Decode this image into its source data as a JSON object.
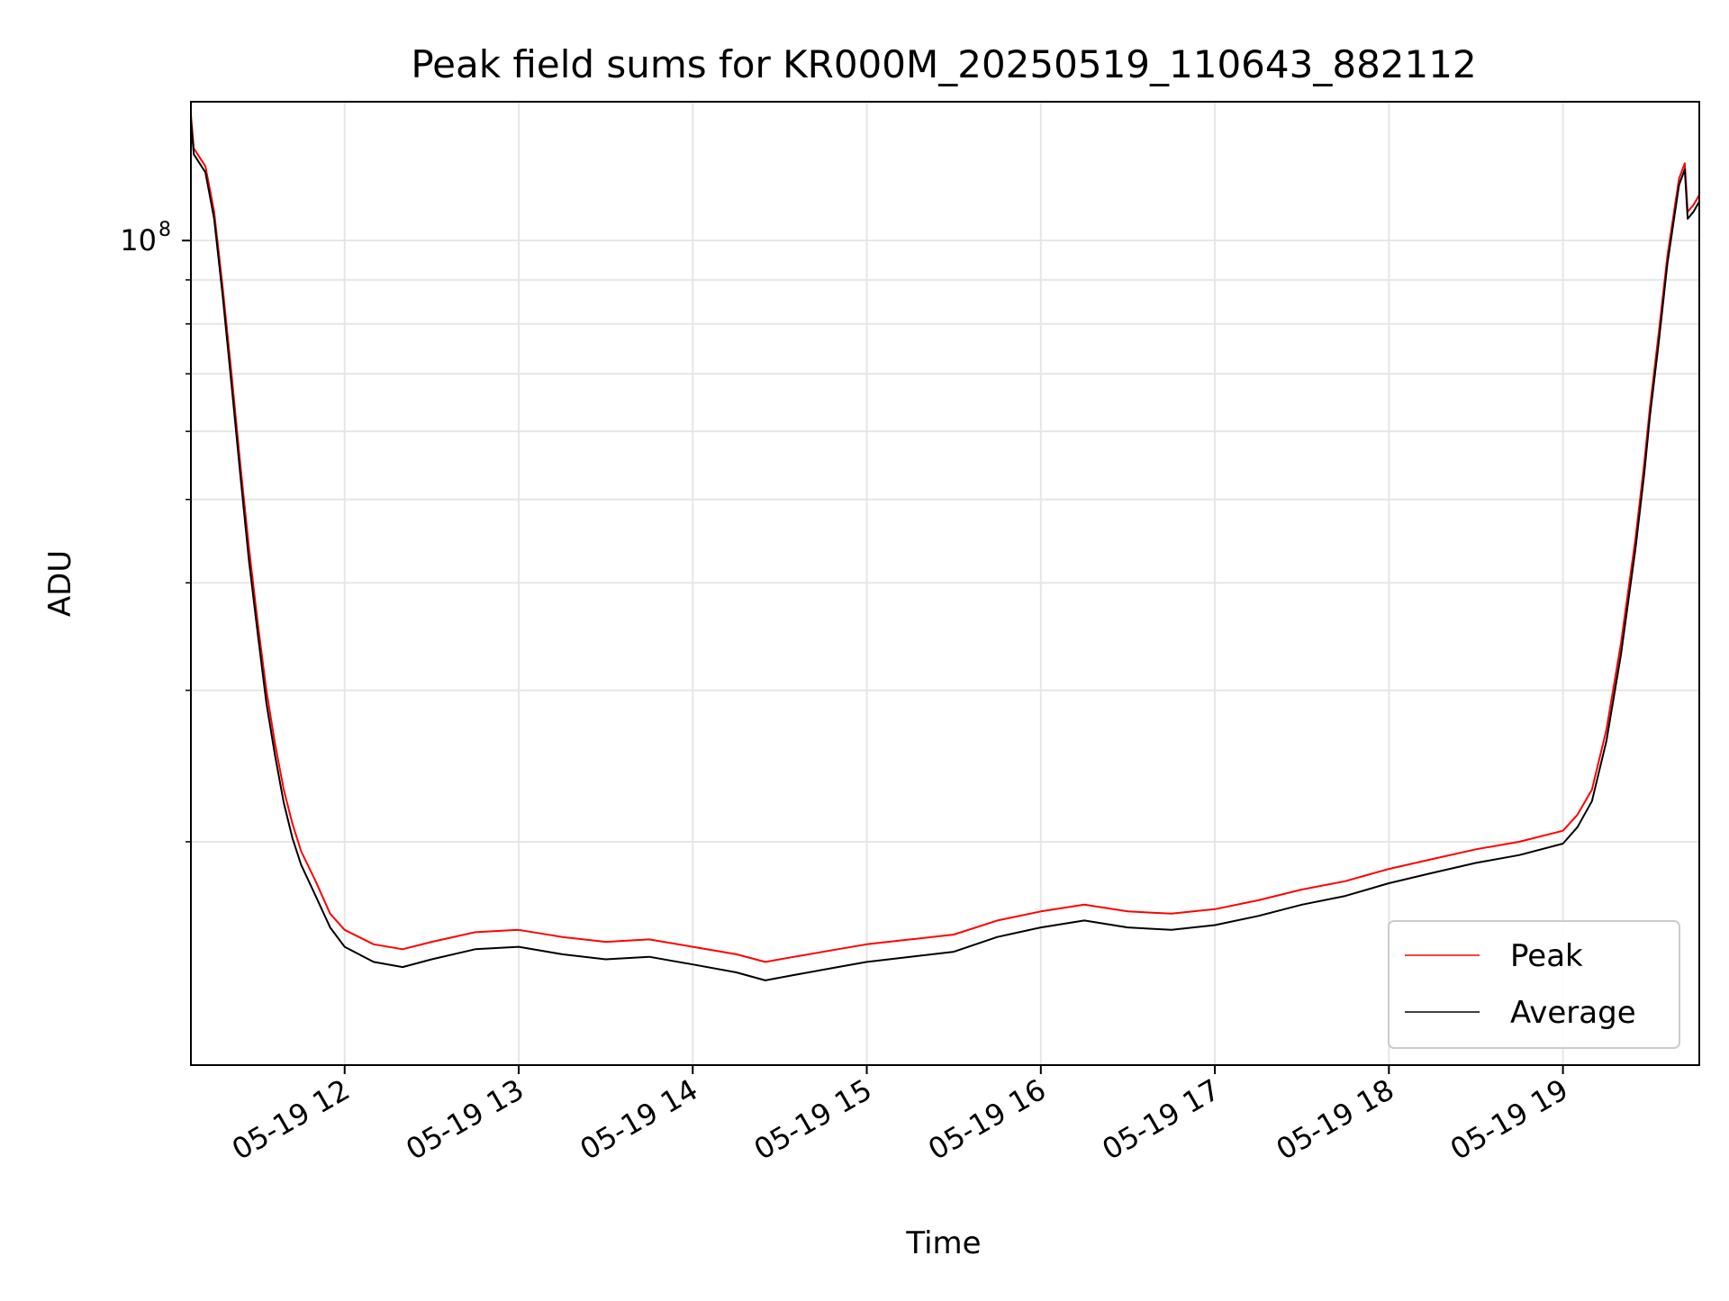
{
  "chart_data": {
    "type": "line",
    "title": "Peak field sums for KR000M_20250519_110643_882112",
    "xlabel": "Time",
    "ylabel": "ADU",
    "x_scale": "time",
    "y_scale": "log",
    "x_range": [
      "2025-05-19 11:07",
      "2025-05-19 19:47"
    ],
    "ylim": [
      11000000,
      145000000
    ],
    "grid": true,
    "legend_position": "lower-right",
    "x_ticks": [
      "05-19 12",
      "05-19 13",
      "05-19 14",
      "05-19 15",
      "05-19 16",
      "05-19 17",
      "05-19 18",
      "05-19 19"
    ],
    "y_ticks": [
      {
        "value": 100000000,
        "label": "10",
        "exponent": "8"
      }
    ],
    "y_minor_ticks": [
      20000000,
      30000000,
      40000000,
      50000000,
      60000000,
      70000000,
      80000000,
      90000000
    ],
    "series": [
      {
        "name": "Peak",
        "color": "#ff0000",
        "points": [
          [
            "2025-05-19 11:07",
            140000000
          ],
          [
            "2025-05-19 11:08",
            128000000
          ],
          [
            "2025-05-19 11:12",
            122000000
          ],
          [
            "2025-05-19 11:15",
            108000000
          ],
          [
            "2025-05-19 11:18",
            88000000
          ],
          [
            "2025-05-19 11:21",
            70000000
          ],
          [
            "2025-05-19 11:24",
            55000000
          ],
          [
            "2025-05-19 11:27",
            44000000
          ],
          [
            "2025-05-19 11:30",
            36000000
          ],
          [
            "2025-05-19 11:33",
            30000000
          ],
          [
            "2025-05-19 11:36",
            26000000
          ],
          [
            "2025-05-19 11:39",
            23000000
          ],
          [
            "2025-05-19 11:42",
            21000000
          ],
          [
            "2025-05-19 11:45",
            19500000
          ],
          [
            "2025-05-19 11:50",
            18000000
          ],
          [
            "2025-05-19 11:55",
            16500000
          ],
          [
            "2025-05-19 12:00",
            15800000
          ],
          [
            "2025-05-19 12:10",
            15200000
          ],
          [
            "2025-05-19 12:20",
            15000000
          ],
          [
            "2025-05-19 12:30",
            15300000
          ],
          [
            "2025-05-19 12:45",
            15700000
          ],
          [
            "2025-05-19 13:00",
            15800000
          ],
          [
            "2025-05-19 13:15",
            15500000
          ],
          [
            "2025-05-19 13:30",
            15300000
          ],
          [
            "2025-05-19 13:45",
            15400000
          ],
          [
            "2025-05-19 14:00",
            15100000
          ],
          [
            "2025-05-19 14:15",
            14800000
          ],
          [
            "2025-05-19 14:25",
            14500000
          ],
          [
            "2025-05-19 14:35",
            14700000
          ],
          [
            "2025-05-19 14:50",
            15000000
          ],
          [
            "2025-05-19 15:00",
            15200000
          ],
          [
            "2025-05-19 15:15",
            15400000
          ],
          [
            "2025-05-19 15:30",
            15600000
          ],
          [
            "2025-05-19 15:45",
            16200000
          ],
          [
            "2025-05-19 16:00",
            16600000
          ],
          [
            "2025-05-19 16:15",
            16900000
          ],
          [
            "2025-05-19 16:30",
            16600000
          ],
          [
            "2025-05-19 16:45",
            16500000
          ],
          [
            "2025-05-19 17:00",
            16700000
          ],
          [
            "2025-05-19 17:15",
            17100000
          ],
          [
            "2025-05-19 17:30",
            17600000
          ],
          [
            "2025-05-19 17:45",
            18000000
          ],
          [
            "2025-05-19 18:00",
            18600000
          ],
          [
            "2025-05-19 18:15",
            19100000
          ],
          [
            "2025-05-19 18:30",
            19600000
          ],
          [
            "2025-05-19 18:45",
            20000000
          ],
          [
            "2025-05-19 19:00",
            20600000
          ],
          [
            "2025-05-19 19:05",
            21500000
          ],
          [
            "2025-05-19 19:10",
            23000000
          ],
          [
            "2025-05-19 19:15",
            27000000
          ],
          [
            "2025-05-19 19:20",
            34000000
          ],
          [
            "2025-05-19 19:25",
            45000000
          ],
          [
            "2025-05-19 19:28",
            55000000
          ],
          [
            "2025-05-19 19:30",
            64000000
          ],
          [
            "2025-05-19 19:33",
            78000000
          ],
          [
            "2025-05-19 19:36",
            96000000
          ],
          [
            "2025-05-19 19:40",
            118000000
          ],
          [
            "2025-05-19 19:42",
            123000000
          ],
          [
            "2025-05-19 19:43",
            108000000
          ],
          [
            "2025-05-19 19:45",
            110000000
          ],
          [
            "2025-05-19 19:47",
            113000000
          ]
        ]
      },
      {
        "name": "Average",
        "color": "#000000",
        "points": [
          [
            "2025-05-19 11:07",
            138000000
          ],
          [
            "2025-05-19 11:08",
            126000000
          ],
          [
            "2025-05-19 11:12",
            120000000
          ],
          [
            "2025-05-19 11:15",
            106000000
          ],
          [
            "2025-05-19 11:18",
            86000000
          ],
          [
            "2025-05-19 11:21",
            68000000
          ],
          [
            "2025-05-19 11:24",
            53500000
          ],
          [
            "2025-05-19 11:27",
            42500000
          ],
          [
            "2025-05-19 11:30",
            35000000
          ],
          [
            "2025-05-19 11:33",
            29000000
          ],
          [
            "2025-05-19 11:36",
            25200000
          ],
          [
            "2025-05-19 11:39",
            22200000
          ],
          [
            "2025-05-19 11:42",
            20200000
          ],
          [
            "2025-05-19 11:45",
            18800000
          ],
          [
            "2025-05-19 11:50",
            17300000
          ],
          [
            "2025-05-19 11:55",
            15900000
          ],
          [
            "2025-05-19 12:00",
            15100000
          ],
          [
            "2025-05-19 12:10",
            14500000
          ],
          [
            "2025-05-19 12:20",
            14300000
          ],
          [
            "2025-05-19 12:30",
            14600000
          ],
          [
            "2025-05-19 12:45",
            15000000
          ],
          [
            "2025-05-19 13:00",
            15100000
          ],
          [
            "2025-05-19 13:15",
            14800000
          ],
          [
            "2025-05-19 13:30",
            14600000
          ],
          [
            "2025-05-19 13:45",
            14700000
          ],
          [
            "2025-05-19 14:00",
            14400000
          ],
          [
            "2025-05-19 14:15",
            14100000
          ],
          [
            "2025-05-19 14:25",
            13800000
          ],
          [
            "2025-05-19 14:35",
            14000000
          ],
          [
            "2025-05-19 14:50",
            14300000
          ],
          [
            "2025-05-19 15:00",
            14500000
          ],
          [
            "2025-05-19 15:15",
            14700000
          ],
          [
            "2025-05-19 15:30",
            14900000
          ],
          [
            "2025-05-19 15:45",
            15500000
          ],
          [
            "2025-05-19 16:00",
            15900000
          ],
          [
            "2025-05-19 16:15",
            16200000
          ],
          [
            "2025-05-19 16:30",
            15900000
          ],
          [
            "2025-05-19 16:45",
            15800000
          ],
          [
            "2025-05-19 17:00",
            16000000
          ],
          [
            "2025-05-19 17:15",
            16400000
          ],
          [
            "2025-05-19 17:30",
            16900000
          ],
          [
            "2025-05-19 17:45",
            17300000
          ],
          [
            "2025-05-19 18:00",
            17900000
          ],
          [
            "2025-05-19 18:15",
            18400000
          ],
          [
            "2025-05-19 18:30",
            18900000
          ],
          [
            "2025-05-19 18:45",
            19300000
          ],
          [
            "2025-05-19 19:00",
            19900000
          ],
          [
            "2025-05-19 19:05",
            20800000
          ],
          [
            "2025-05-19 19:10",
            22300000
          ],
          [
            "2025-05-19 19:15",
            26200000
          ],
          [
            "2025-05-19 19:20",
            33000000
          ],
          [
            "2025-05-19 19:25",
            43800000
          ],
          [
            "2025-05-19 19:28",
            53500000
          ],
          [
            "2025-05-19 19:30",
            62500000
          ],
          [
            "2025-05-19 19:33",
            76000000
          ],
          [
            "2025-05-19 19:36",
            94000000
          ],
          [
            "2025-05-19 19:40",
            116000000
          ],
          [
            "2025-05-19 19:42",
            121000000
          ],
          [
            "2025-05-19 19:43",
            106000000
          ],
          [
            "2025-05-19 19:45",
            108000000
          ],
          [
            "2025-05-19 19:47",
            111000000
          ]
        ]
      }
    ]
  }
}
